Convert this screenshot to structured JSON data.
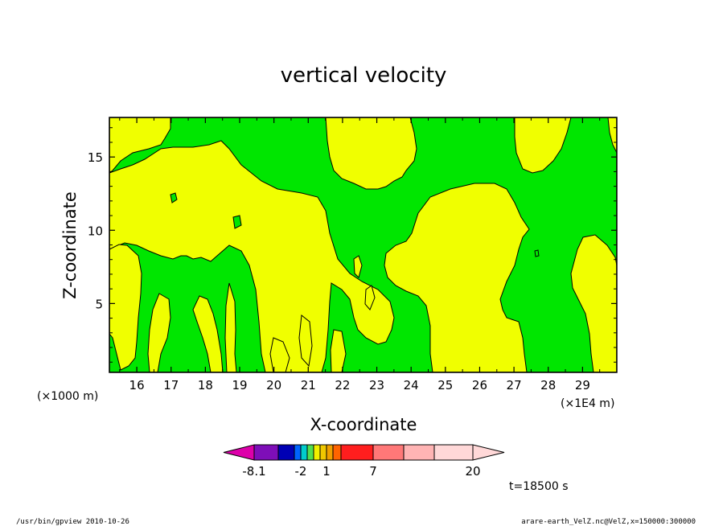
{
  "chart_data": {
    "type": "heatmap",
    "title": "vertical velocity",
    "xlabel": "X-coordinate",
    "ylabel": "Z-coordinate",
    "x_units_left": "(×1000 m)",
    "x_units_right": "(×1E4 m)",
    "x_ticks": [
      "16",
      "17",
      "18",
      "19",
      "20",
      "21",
      "22",
      "23",
      "24",
      "25",
      "26",
      "27",
      "28",
      "29"
    ],
    "y_ticks": [
      "5",
      "10",
      "15"
    ],
    "xlim": [
      15.2,
      30.0
    ],
    "ylim": [
      0.3,
      17.7
    ],
    "colorbar": {
      "labels": [
        {
          "text": "-8.1",
          "at": -8.1
        },
        {
          "text": "-2",
          "at": -2
        },
        {
          "text": "1",
          "at": 1
        },
        {
          "text": "7",
          "at": 7
        },
        {
          "text": "20",
          "at": 20
        }
      ],
      "colors": [
        "#dd00aa",
        "#7e0eb8",
        "#0000b4",
        "#0064ff",
        "#00cccc",
        "#50e050",
        "#f0f000",
        "#f0c800",
        "#f0a000",
        "#ff6400",
        "#ff1e1e",
        "#ff7878",
        "#ffb4b4",
        "#ffd8d8"
      ]
    },
    "fill_colors": {
      "positive": "#f0ff00",
      "negative": "#00e600"
    },
    "time_label": "t=18500 s"
  },
  "footer": {
    "left": "/usr/bin/gpview   2010-10-26",
    "right": "arare-earth_VelZ.nc@VelZ,x=150000:300000"
  }
}
